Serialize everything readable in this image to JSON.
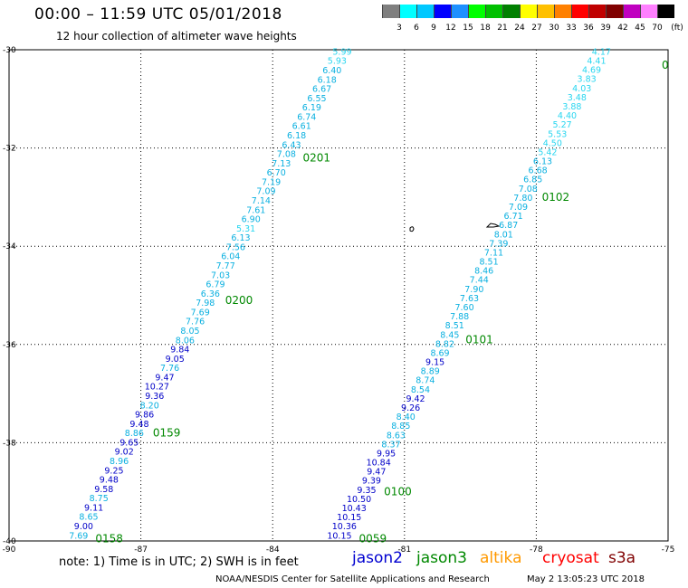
{
  "header": {
    "title": "00:00 – 11:59 UTC 05/01/2018",
    "subtitle": "12 hour collection of altimeter wave heights"
  },
  "colorbar": {
    "unit": "(ft)",
    "labels": [
      "3",
      "6",
      "9",
      "12",
      "15",
      "18",
      "21",
      "24",
      "27",
      "30",
      "33",
      "36",
      "39",
      "42",
      "45",
      "70"
    ],
    "colors": [
      "#7f7f7f",
      "#00ffff",
      "#00c8ff",
      "#0000ff",
      "#1e90ff",
      "#00ff00",
      "#00c000",
      "#008000",
      "#ffff00",
      "#ffc000",
      "#ff8000",
      "#ff0000",
      "#c00000",
      "#800000",
      "#c000c0",
      "#ff80ff",
      "#000000"
    ]
  },
  "map": {
    "lon_labels": [
      "-90",
      "-87",
      "-84",
      "-81",
      "-78",
      "-75"
    ],
    "lat_labels": [
      "-30",
      "-32",
      "-34",
      "-36",
      "-38",
      "-40"
    ],
    "lon_range": [
      -90,
      -75
    ],
    "lat_range": [
      -40,
      -30
    ],
    "grid": "dotted"
  },
  "tracks": [
    {
      "satellite": "jason3",
      "time_labels": [
        "0201",
        "0200",
        "0159",
        "0158"
      ],
      "time_label_lats": [
        -32.2,
        -35.1,
        -37.8,
        -39.95
      ],
      "start": {
        "lon": -82.2,
        "lat": -30.1
      },
      "end": {
        "lon": -88.2,
        "lat": -39.95
      },
      "swh": [
        "5.99",
        "5.93",
        "6.40",
        "6.18",
        "6.67",
        "6.55",
        "6.19",
        "6.74",
        "6.61",
        "6.18",
        "6.43",
        "7.08",
        "7.13",
        "6.70",
        "7.19",
        "7.09",
        "7.14",
        "7.61",
        "6.90",
        "5.31",
        "6.13",
        "7.56",
        "6.04",
        "7.77",
        "7.03",
        "6.79",
        "6.36",
        "7.98",
        "7.69",
        "7.76",
        "8.05",
        "8.06",
        "9.84",
        "9.05",
        "7.76",
        "9.47",
        "10.27",
        "9.36",
        "8.20",
        "9.86",
        "9.48",
        "8.86",
        "9.65",
        "9.02",
        "8.96",
        "9.25",
        "9.48",
        "9.58",
        "8.75",
        "9.11",
        "8.65",
        "9.00",
        "7.69"
      ]
    },
    {
      "satellite": "jason3",
      "time_labels": [
        "0102",
        "0101",
        "0100",
        "0059"
      ],
      "time_label_lats": [
        -33.0,
        -35.9,
        -39.0,
        -39.95
      ],
      "start": {
        "lon": -76.3,
        "lat": -30.1
      },
      "end": {
        "lon": -82.2,
        "lat": -39.95
      },
      "swh": [
        "4.17",
        "4.41",
        "4.69",
        "3.83",
        "4.03",
        "3.48",
        "3.88",
        "4.40",
        "5.27",
        "5.53",
        "4.50",
        "5.42",
        "6.13",
        "6.68",
        "6.85",
        "7.08",
        "7.80",
        "7.09",
        "6.71",
        "6.87",
        "8.01",
        "7.39",
        "7.11",
        "8.51",
        "8.46",
        "7.44",
        "7.90",
        "7.63",
        "7.60",
        "7.88",
        "8.51",
        "8.45",
        "8.82",
        "8.69",
        "9.15",
        "8.89",
        "8.74",
        "8.54",
        "9.42",
        "9.26",
        "8.40",
        "8.85",
        "8.63",
        "8.37",
        "9.95",
        "10.84",
        "9.47",
        "9.39",
        "9.35",
        "10.50",
        "10.43",
        "10.15",
        "10.36",
        "10.15"
      ]
    }
  ],
  "partial_label": "0",
  "note": "note: 1) Time is in UTC; 2) SWH is in feet",
  "satellites": [
    {
      "name": "jason2",
      "color": "#0000d0"
    },
    {
      "name": "jason3",
      "color": "#008800"
    },
    {
      "name": "altika",
      "color": "#ff9900"
    },
    {
      "name": "cryosat",
      "color": "#ff0000"
    },
    {
      "name": "s3a",
      "color": "#800000"
    }
  ],
  "credit": "NOAA/NESDIS Center for Satellite Applications and Research",
  "generated": "May  2 13:05:23 UTC 2018"
}
